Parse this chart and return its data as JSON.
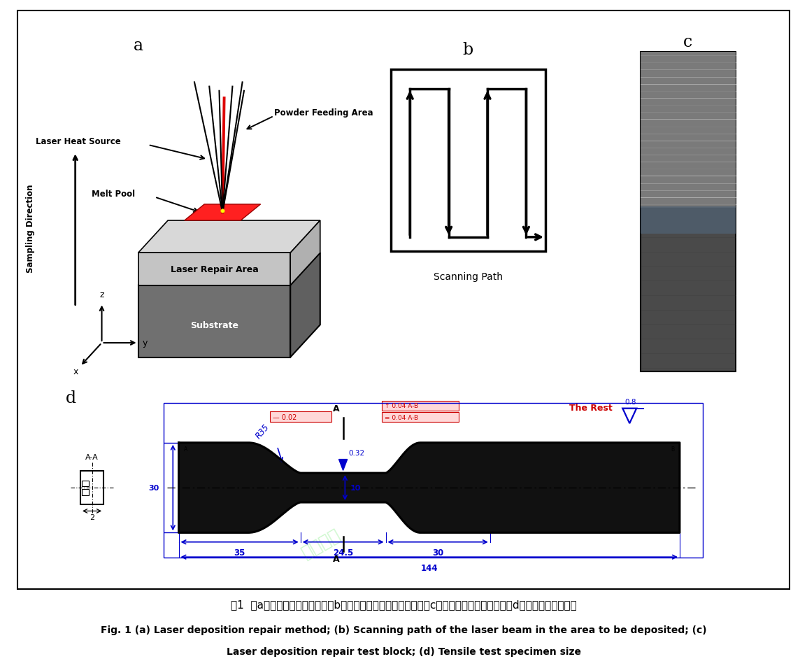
{
  "fig_width": 11.54,
  "fig_height": 9.53,
  "background": "#ffffff",
  "caption_cn": "图1  （a）激光沉积修复方式；（b）待沉积区激光束扫描路径；（c）激光沉积修复试验块；（d）拉伸试验试样尺寸",
  "caption_en_line1": "Fig. 1 (a) Laser deposition repair method; (b) Scanning path of the laser beam in the area to be deposited; (c)",
  "caption_en_line2": "Laser deposition repair test block; (d) Tensile test specimen size",
  "blue_color": "#0000CD",
  "red_color": "#CC0000",
  "green_tol_color": "#006400"
}
